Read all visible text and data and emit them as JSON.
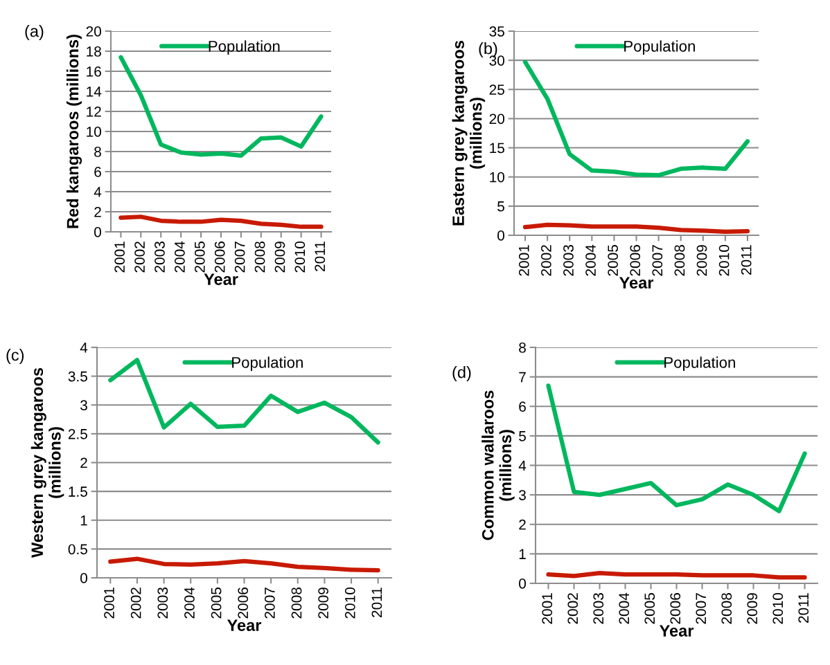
{
  "chart_data": [
    {
      "type": "line",
      "annotations": [
        "(a)"
      ],
      "xlabel": "Year",
      "ylabel": "Red kangaroos (millions)",
      "categories": [
        "2001",
        "2002",
        "2003",
        "2004",
        "2005",
        "2006",
        "2007",
        "2008",
        "2009",
        "2010",
        "2011"
      ],
      "ylim": [
        0,
        20
      ],
      "yticks": [
        0,
        2,
        4,
        6,
        8,
        10,
        12,
        14,
        16,
        18,
        20
      ],
      "grid": "y",
      "legend": "top",
      "marker": "none",
      "series": [
        {
          "name": "Population",
          "color": "#00b75e",
          "values": [
            17.4,
            13.6,
            8.7,
            7.9,
            7.7,
            7.8,
            7.6,
            9.3,
            9.4,
            8.5,
            11.5
          ]
        },
        {
          "color": "#c81a00",
          "values": [
            1.4,
            1.5,
            1.1,
            1.0,
            1.0,
            1.2,
            1.1,
            0.8,
            0.7,
            0.5,
            0.5
          ]
        }
      ]
    },
    {
      "type": "line",
      "annotations": [
        "(b)"
      ],
      "xlabel": "Year",
      "ylabel": "Eastern grey kangaroos\n(millions)",
      "categories": [
        "2001",
        "2002",
        "2003",
        "2004",
        "2005",
        "2006",
        "2007",
        "2008",
        "2009",
        "2010",
        "2011"
      ],
      "ylim": [
        0,
        35
      ],
      "yticks": [
        0,
        5,
        10,
        15,
        20,
        25,
        30,
        35
      ],
      "grid": "y",
      "legend": "top",
      "marker": "none",
      "series": [
        {
          "name": "Population",
          "color": "#00b75e",
          "values": [
            29.7,
            23.4,
            13.9,
            11.1,
            10.9,
            10.4,
            10.3,
            11.4,
            11.6,
            11.4,
            16.1
          ]
        },
        {
          "color": "#c81a00",
          "values": [
            1.4,
            1.8,
            1.7,
            1.5,
            1.5,
            1.5,
            1.3,
            0.9,
            0.8,
            0.6,
            0.7
          ]
        }
      ]
    },
    {
      "type": "line",
      "annotations": [
        "(c)"
      ],
      "xlabel": "Year",
      "ylabel": "Western grey kangaroos\n(millions)",
      "categories": [
        "2001",
        "2002",
        "2003",
        "2004",
        "2005",
        "2006",
        "2007",
        "2008",
        "2009",
        "2010",
        "2011"
      ],
      "ylim": [
        0,
        4
      ],
      "yticks": [
        0,
        0.5,
        1,
        1.5,
        2,
        2.5,
        3,
        3.5,
        4
      ],
      "grid": "y",
      "legend": "top",
      "marker": "none",
      "series": [
        {
          "name": "Population",
          "color": "#00b75e",
          "values": [
            3.43,
            3.78,
            2.61,
            3.02,
            2.62,
            2.64,
            3.16,
            2.88,
            3.04,
            2.79,
            2.35
          ]
        },
        {
          "color": "#c81a00",
          "values": [
            0.28,
            0.33,
            0.24,
            0.23,
            0.25,
            0.29,
            0.25,
            0.19,
            0.17,
            0.14,
            0.13
          ]
        }
      ]
    },
    {
      "type": "line",
      "annotations": [
        "(d)"
      ],
      "xlabel": "Year",
      "ylabel": "Common wallaroos\n(millions)",
      "categories": [
        "2001",
        "2002",
        "2003",
        "2004",
        "2005",
        "2006",
        "2007",
        "2008",
        "2009",
        "2010",
        "2011"
      ],
      "ylim": [
        0,
        8
      ],
      "yticks": [
        0,
        1,
        2,
        3,
        4,
        5,
        6,
        7,
        8
      ],
      "grid": "y",
      "legend": "top",
      "marker": "none",
      "series": [
        {
          "name": "Population",
          "color": "#00b75e",
          "values": [
            6.7,
            3.1,
            3.0,
            3.2,
            3.4,
            2.65,
            2.85,
            3.35,
            3.0,
            2.45,
            4.4
          ]
        },
        {
          "color": "#c81a00",
          "values": [
            0.3,
            0.25,
            0.35,
            0.3,
            0.3,
            0.3,
            0.27,
            0.27,
            0.27,
            0.2,
            0.2
          ]
        }
      ]
    }
  ]
}
